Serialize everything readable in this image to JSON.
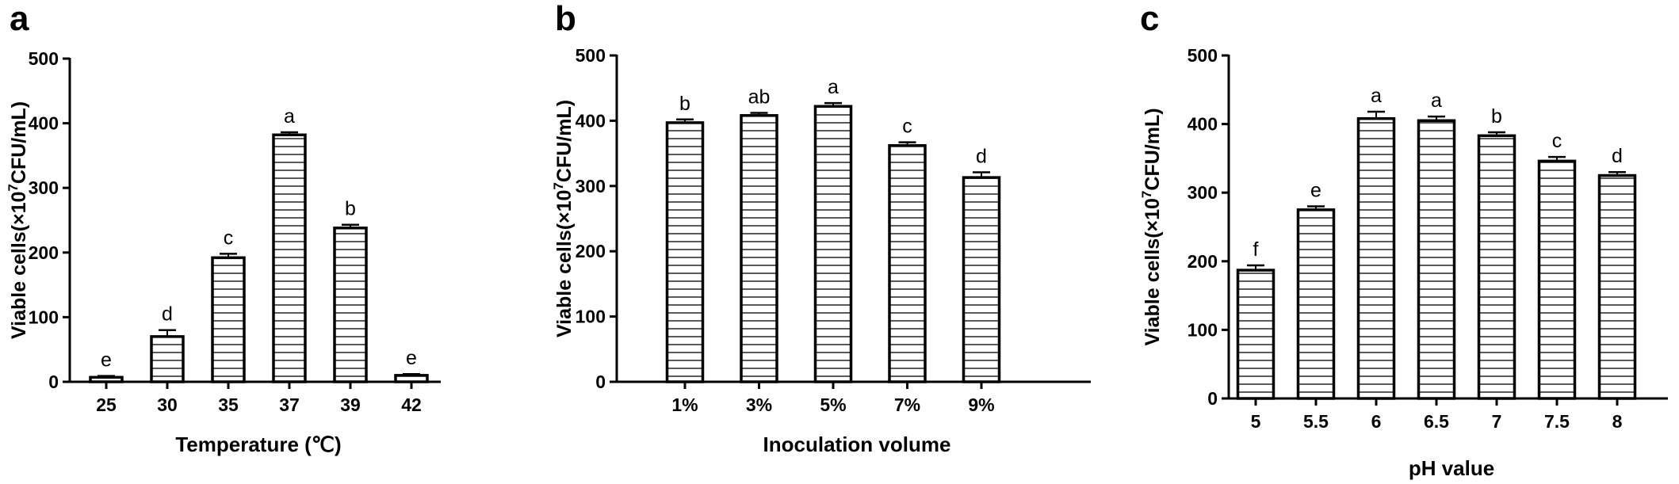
{
  "panels": [
    {
      "letter": "a"
    },
    {
      "letter": "b"
    },
    {
      "letter": "c"
    }
  ],
  "colors": {
    "bar_edge": "#000000",
    "hatch": "#000000",
    "background": "#ffffff"
  },
  "chart_data": [
    {
      "type": "bar",
      "panel": "a",
      "categories": [
        "25",
        "30",
        "35",
        "37",
        "39",
        "42"
      ],
      "values": [
        7,
        70,
        192,
        382,
        238,
        10
      ],
      "errors": [
        2,
        10,
        6,
        4,
        5,
        2
      ],
      "annotations": [
        "e",
        "d",
        "c",
        "a",
        "b",
        "e"
      ],
      "xlabel": "Temperature (℃)",
      "ylabel_prefix": "Viable cells(×10",
      "ylabel_sup": "7",
      "ylabel_suffix": "CFU/mL)",
      "ylim": [
        0,
        500
      ],
      "yticks": [
        "0",
        "100",
        "200",
        "300",
        "400",
        "500"
      ],
      "hatch": "horizontal lines",
      "grid": false
    },
    {
      "type": "bar",
      "panel": "b",
      "categories": [
        "1%",
        "3%",
        "5%",
        "7%",
        "9%"
      ],
      "values": [
        397,
        408,
        422,
        362,
        313
      ],
      "errors": [
        5,
        4,
        5,
        5,
        8
      ],
      "annotations": [
        "b",
        "ab",
        "a",
        "c",
        "d"
      ],
      "xlabel": "Inoculation volume",
      "ylabel_prefix": "Viable cells(×10",
      "ylabel_sup": "7",
      "ylabel_suffix": "CFU/mL)",
      "ylim": [
        0,
        500
      ],
      "yticks": [
        "0",
        "100",
        "200",
        "300",
        "400",
        "500"
      ],
      "hatch": "horizontal lines",
      "grid": false
    },
    {
      "type": "bar",
      "panel": "c",
      "categories": [
        "5",
        "5.5",
        "6",
        "6.5",
        "7",
        "7.5",
        "8"
      ],
      "values": [
        187,
        275,
        408,
        405,
        383,
        346,
        325
      ],
      "errors": [
        7,
        5,
        10,
        6,
        5,
        6,
        5
      ],
      "annotations": [
        "f",
        "e",
        "a",
        "a",
        "b",
        "c",
        "d"
      ],
      "xlabel": "pH value",
      "ylabel_prefix": "Viable cells(×10",
      "ylabel_sup": "7",
      "ylabel_suffix": "CFU/mL)",
      "ylim": [
        0,
        500
      ],
      "yticks": [
        "0",
        "100",
        "200",
        "300",
        "400",
        "500"
      ],
      "hatch": "horizontal lines",
      "grid": false
    }
  ]
}
